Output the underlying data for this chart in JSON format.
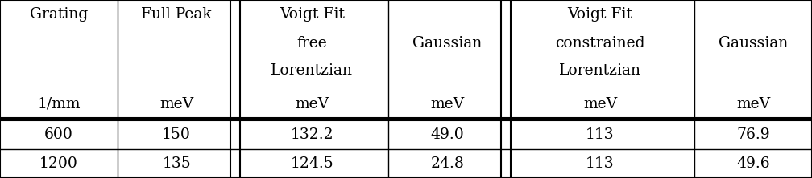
{
  "col_widths_rel": [
    1.0,
    1.0,
    1.3,
    1.0,
    1.6,
    1.0
  ],
  "double_border_cols": [
    1,
    3
  ],
  "header_lines": [
    [
      "Grating",
      "Full Peak",
      "Voigt Fit",
      "",
      "Voigt Fit",
      ""
    ],
    [
      "",
      "",
      "free",
      "Gaussian",
      "constrained",
      "Gaussian"
    ],
    [
      "",
      "",
      "Lorentzian",
      "",
      "Lorentzian",
      ""
    ],
    [
      "1/mm",
      "meV",
      "meV",
      "meV",
      "meV",
      "meV"
    ]
  ],
  "data_rows": [
    [
      "600",
      "150",
      "132.2",
      "49.0",
      "113",
      "76.9"
    ],
    [
      "1200",
      "135",
      "124.5",
      "24.8",
      "113",
      "49.6"
    ]
  ],
  "bg_color": "#ffffff",
  "text_color": "#000000",
  "font_size": 13.5,
  "figsize": [
    10.08,
    2.22
  ],
  "dpi": 100
}
